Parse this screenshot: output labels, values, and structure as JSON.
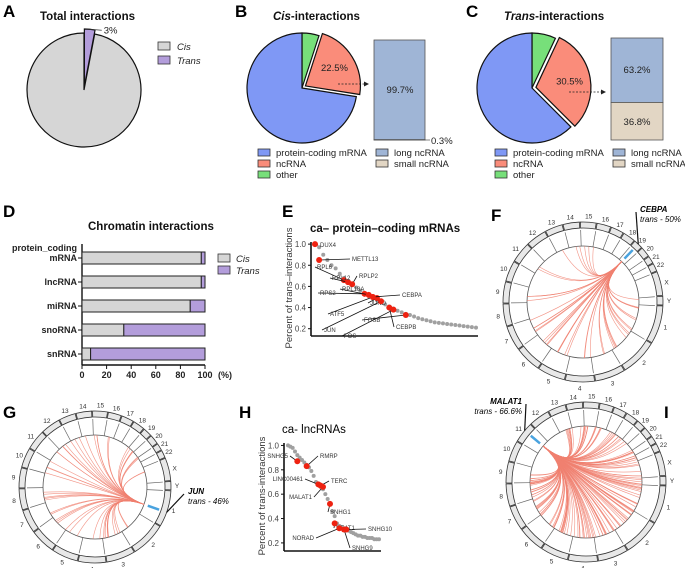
{
  "colors": {
    "cis": "#d6d6d6",
    "trans": "#b39ddb",
    "protein_coding": "#7f98f5",
    "ncrna": "#fa8c7a",
    "other": "#77df7a",
    "long_ncrna": "#9fb5d6",
    "small_ncrna": "#e2d6c4",
    "highlight": "#ee2211",
    "curve": "#a0a0a0",
    "link": "#f08070",
    "ring_highlight": "#4aa3df"
  },
  "panels": {
    "A": "A",
    "B": "B",
    "C": "C",
    "D": "D",
    "E": "E",
    "F": "F",
    "G": "G",
    "H": "H",
    "I": "I"
  },
  "chart_data": [
    {
      "panel": "A",
      "type": "pie",
      "title": "Total interactions",
      "slices": [
        {
          "name": "Trans",
          "value": 3,
          "label": "3%",
          "color_key": "trans",
          "exploded": true
        },
        {
          "name": "Cis",
          "value": 97,
          "color_key": "cis"
        }
      ],
      "legend": [
        "Cis",
        "Trans"
      ]
    },
    {
      "panel": "B",
      "type": "pie",
      "title_italic": "Cis",
      "title_rest": "-interactions",
      "slices": [
        {
          "name": "other",
          "value": 5,
          "color_key": "other"
        },
        {
          "name": "ncRNA",
          "value": 22.5,
          "label": "22.5%",
          "color_key": "ncrna",
          "exploded": true
        },
        {
          "name": "protein-coding mRNA",
          "value": 72.5,
          "color_key": "protein_coding"
        }
      ],
      "breakdown": [
        {
          "name": "long ncRNA",
          "value": 99.7,
          "label": "99.7%",
          "color_key": "long_ncrna"
        },
        {
          "name": "small ncRNA",
          "value": 0.3,
          "label": "0.3%",
          "color_key": "small_ncrna"
        }
      ],
      "legend": [
        "protein-coding mRNA",
        "ncRNA",
        "other"
      ],
      "legend2": [
        "long ncRNA",
        "small ncRNA"
      ]
    },
    {
      "panel": "C",
      "type": "pie",
      "title_italic": "Trans",
      "title_rest": "-interactions",
      "slices": [
        {
          "name": "other",
          "value": 7,
          "color_key": "other"
        },
        {
          "name": "ncRNA",
          "value": 30.5,
          "label": "30.5%",
          "color_key": "ncrna",
          "exploded": true
        },
        {
          "name": "protein-coding mRNA",
          "value": 62.5,
          "color_key": "protein_coding"
        }
      ],
      "breakdown": [
        {
          "name": "long ncRNA",
          "value": 63.2,
          "label": "63.2%",
          "color_key": "long_ncrna"
        },
        {
          "name": "small ncRNA",
          "value": 36.8,
          "label": "36.8%",
          "color_key": "small_ncrna"
        }
      ],
      "legend": [
        "protein-coding mRNA",
        "ncRNA",
        "other"
      ],
      "legend2": [
        "long ncRNA",
        "small ncRNA"
      ]
    },
    {
      "panel": "D",
      "type": "bar",
      "orientation": "horizontal",
      "stacked": true,
      "title": "Chromatin interactions",
      "categories": [
        [
          "protein_coding",
          "mRNA"
        ],
        [
          "lncRNA"
        ],
        [
          "miRNA"
        ],
        [
          "snoRNA"
        ],
        [
          "snRNA"
        ]
      ],
      "series": [
        {
          "name": "Cis",
          "values": [
            97,
            97,
            88,
            34,
            7
          ],
          "color_key": "cis"
        },
        {
          "name": "Trans",
          "values": [
            3,
            3,
            12,
            66,
            93
          ],
          "color_key": "trans"
        }
      ],
      "xlim": [
        0,
        100
      ],
      "xticks": [
        "0",
        "20",
        "40",
        "60",
        "80",
        "100"
      ],
      "xunit": "(%)",
      "legend": "right"
    },
    {
      "panel": "E",
      "type": "scatter",
      "title": "ca– protein–coding mRNAs",
      "ylabel": "Percent of trans–interactions",
      "ylim": [
        0.15,
        1.02
      ],
      "yticks": [
        "0.2",
        "0.4",
        "0.6",
        "0.8",
        "1.0"
      ],
      "background": [
        1.0,
        0.97,
        0.9,
        0.85,
        0.8,
        0.77,
        0.72,
        0.68,
        0.65,
        0.62,
        0.59,
        0.56,
        0.53,
        0.51,
        0.49,
        0.47,
        0.45,
        0.43,
        0.41,
        0.39,
        0.37,
        0.355,
        0.34,
        0.33,
        0.315,
        0.3,
        0.29,
        0.28,
        0.27,
        0.26,
        0.255,
        0.25,
        0.245,
        0.24,
        0.235,
        0.23,
        0.225,
        0.22,
        0.215,
        0.21
      ],
      "highlights": [
        {
          "gene": "DUX4",
          "rank": 0,
          "y": 1.0
        },
        {
          "gene": "METTL13",
          "rank": 1,
          "y": 0.85
        },
        {
          "gene": "RPL6",
          "rank": 7,
          "y": 0.66
        },
        {
          "gene": "RPL12",
          "rank": 8,
          "y": 0.64
        },
        {
          "gene": "RPLP2",
          "rank": 9,
          "y": 0.62
        },
        {
          "gene": "RPS2",
          "rank": 12,
          "y": 0.53
        },
        {
          "gene": "RPL18A",
          "rank": 13,
          "y": 0.52
        },
        {
          "gene": "ATF5",
          "rank": 14,
          "y": 0.5
        },
        {
          "gene": "JUND",
          "rank": 15,
          "y": 0.49
        },
        {
          "gene": "CEBPA",
          "rank": 14,
          "y": 0.5
        },
        {
          "gene": "JUN",
          "rank": 16,
          "y": 0.46
        },
        {
          "gene": "FOS",
          "rank": 19,
          "y": 0.38
        },
        {
          "gene": "FOSB",
          "rank": 22,
          "y": 0.33
        },
        {
          "gene": "CEBPB",
          "rank": 18,
          "y": 0.4
        }
      ]
    },
    {
      "panel": "F",
      "type": "circos",
      "focus_gene": "CEBPA",
      "focus_chr": "19",
      "annotation": "trans - 50%"
    },
    {
      "panel": "G",
      "type": "circos",
      "focus_gene": "JUN",
      "focus_chr": "1",
      "annotation": "trans - 46%"
    },
    {
      "panel": "H",
      "type": "scatter",
      "title": "ca- lncRNAs",
      "ylabel": "Percent of trans-interactions",
      "ylim": [
        0.15,
        1.02
      ],
      "yticks": [
        "0.2",
        "0.4",
        "0.6",
        "0.8",
        "1.0"
      ],
      "background": [
        1.0,
        0.99,
        0.98,
        0.95,
        0.92,
        0.9,
        0.88,
        0.86,
        0.84,
        0.82,
        0.79,
        0.75,
        0.7,
        0.68,
        0.66,
        0.64,
        0.6,
        0.56,
        0.52,
        0.46,
        0.42,
        0.36,
        0.34,
        0.33,
        0.32,
        0.31,
        0.3,
        0.29,
        0.28,
        0.27,
        0.26,
        0.26,
        0.25,
        0.25,
        0.24,
        0.24,
        0.24,
        0.23,
        0.23,
        0.23
      ],
      "highlights": [
        {
          "gene": "SNHG5",
          "rank": 4,
          "y": 0.87
        },
        {
          "gene": "RMRP",
          "rank": 8,
          "y": 0.83
        },
        {
          "gene": "LINC00461",
          "rank": 13,
          "y": 0.68
        },
        {
          "gene": "TERC",
          "rank": 14,
          "y": 0.67
        },
        {
          "gene": "MALAT1",
          "rank": 15,
          "y": 0.66
        },
        {
          "gene": "SNHG1",
          "rank": 18,
          "y": 0.52
        },
        {
          "gene": "NEAT1",
          "rank": 20,
          "y": 0.36
        },
        {
          "gene": "NORAD",
          "rank": 22,
          "y": 0.32
        },
        {
          "gene": "SNHG9",
          "rank": 24,
          "y": 0.31
        },
        {
          "gene": "SNHG10",
          "rank": 25,
          "y": 0.31
        }
      ]
    },
    {
      "panel": "I",
      "type": "circos",
      "focus_gene": "MALAT1",
      "focus_chr": "11",
      "annotation": "trans - 66.6%"
    }
  ],
  "chromosomes": [
    "1",
    "2",
    "3",
    "4",
    "5",
    "6",
    "7",
    "8",
    "9",
    "10",
    "11",
    "12",
    "13",
    "14",
    "15",
    "16",
    "17",
    "18",
    "19",
    "20",
    "21",
    "22",
    "X",
    "Y"
  ]
}
